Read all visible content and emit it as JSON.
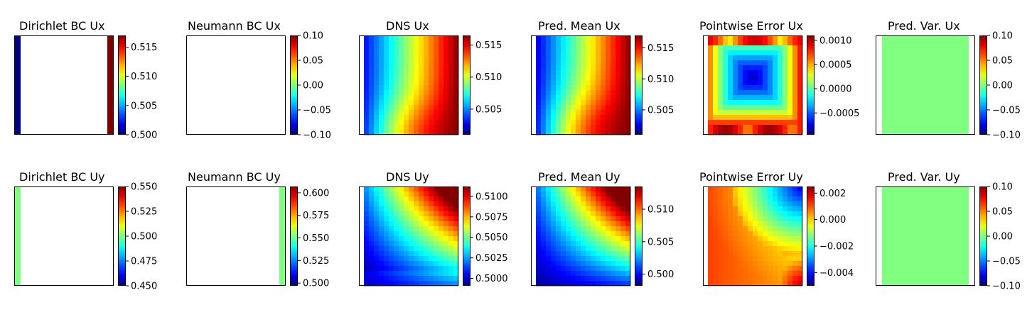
{
  "chart_data": [
    {
      "type": "heatmap",
      "title": "Dirichlet BC Ux",
      "colorbar_ticks": [
        "0.500",
        "0.505",
        "0.510",
        "0.515"
      ],
      "clim": [
        0.5,
        0.517
      ],
      "field": "dirichlet_ux"
    },
    {
      "type": "heatmap",
      "title": "Neumann BC Ux",
      "colorbar_ticks": [
        "0.10",
        "0.05",
        "0.00",
        "−0.05",
        "−0.10"
      ],
      "clim": [
        -0.1,
        0.1
      ],
      "field": "empty"
    },
    {
      "type": "heatmap",
      "title": "DNS Ux",
      "colorbar_ticks": [
        "0.515",
        "0.510",
        "0.505"
      ],
      "clim": [
        0.501,
        0.5165
      ],
      "field": "dns_ux"
    },
    {
      "type": "heatmap",
      "title": "Pred. Mean Ux",
      "colorbar_ticks": [
        "0.515",
        "0.510",
        "0.505"
      ],
      "clim": [
        0.501,
        0.517
      ],
      "field": "pred_ux"
    },
    {
      "type": "heatmap",
      "title": "Pointwise Error Ux",
      "colorbar_ticks": [
        "0.0010",
        "0.0005",
        "0.0000",
        "−0.0005"
      ],
      "clim": [
        -0.00095,
        0.0011
      ],
      "field": "error_ux"
    },
    {
      "type": "heatmap",
      "title": "Pred. Var. Ux",
      "colorbar_ticks": [
        "0.10",
        "0.05",
        "0.00",
        "−0.05",
        "−0.10"
      ],
      "clim": [
        -0.1,
        0.1
      ],
      "field": "variance"
    },
    {
      "type": "heatmap",
      "title": "Dirichlet BC Uy",
      "colorbar_ticks": [
        "0.550",
        "0.525",
        "0.500",
        "0.475",
        "0.450"
      ],
      "clim": [
        0.45,
        0.55
      ],
      "field": "dirichlet_uy"
    },
    {
      "type": "heatmap",
      "title": "Neumann BC Uy",
      "colorbar_ticks": [
        "0.600",
        "0.575",
        "0.550",
        "0.525",
        "0.500"
      ],
      "clim": [
        0.497,
        0.607
      ],
      "field": "neumann_uy"
    },
    {
      "type": "heatmap",
      "title": "DNS Uy",
      "colorbar_ticks": [
        "0.5100",
        "0.5075",
        "0.5050",
        "0.5025",
        "0.5000"
      ],
      "clim": [
        0.4991,
        0.5112
      ],
      "field": "dns_uy"
    },
    {
      "type": "heatmap",
      "title": "Pred. Mean Uy",
      "colorbar_ticks": [
        "0.510",
        "0.505",
        "0.500"
      ],
      "clim": [
        0.4982,
        0.5135
      ],
      "field": "pred_uy"
    },
    {
      "type": "heatmap",
      "title": "Pointwise Error Uy",
      "colorbar_ticks": [
        "0.002",
        "0.000",
        "−0.002",
        "−0.004"
      ],
      "clim": [
        -0.005,
        0.0025
      ],
      "field": "error_uy"
    },
    {
      "type": "heatmap",
      "title": "Pred. Var. Uy",
      "colorbar_ticks": [
        "0.10",
        "0.05",
        "0.00",
        "−0.05",
        "−0.10"
      ],
      "clim": [
        -0.1,
        0.1
      ],
      "field": "variance"
    }
  ]
}
